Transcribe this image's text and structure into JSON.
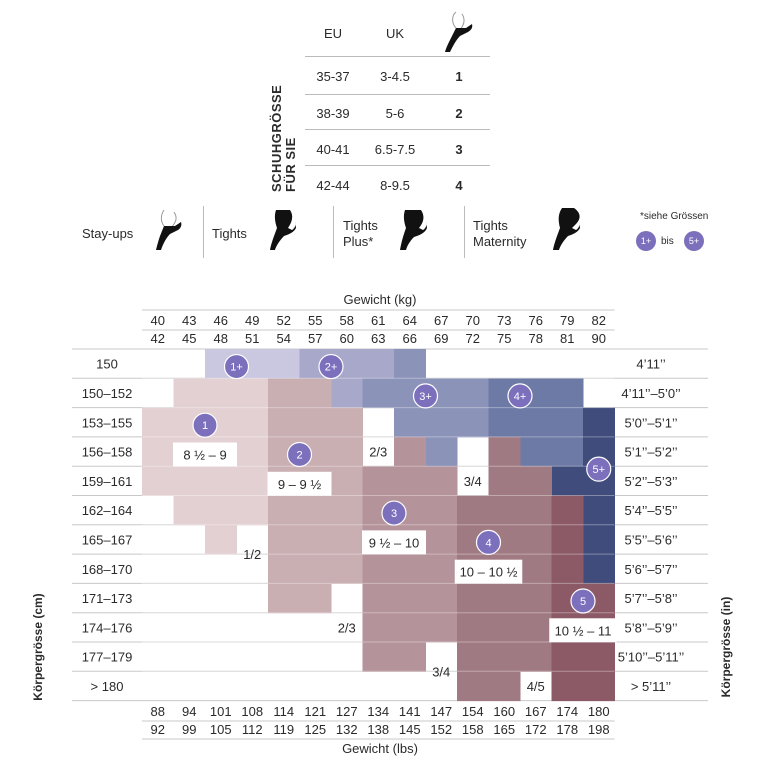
{
  "shoe_table": {
    "title_line1": "SCHUHGRÖSSE",
    "title_line2": "FÜR SIE",
    "headers": [
      "EU",
      "UK"
    ],
    "rows": [
      {
        "eu": "35-37",
        "uk": "3-4.5",
        "size": "1"
      },
      {
        "eu": "38-39",
        "uk": "5-6",
        "size": "2"
      },
      {
        "eu": "40-41",
        "uk": "6.5-7.5",
        "size": "3"
      },
      {
        "eu": "42-44",
        "uk": "8-9.5",
        "size": "4"
      }
    ]
  },
  "legend": {
    "items": [
      {
        "label": "Stay-ups",
        "icon": "stay-ups-leg-icon"
      },
      {
        "label": "Tights",
        "icon": "tights-leg-icon"
      },
      {
        "label": "Tights Plus*",
        "icon": "tights-plus-leg-icon"
      },
      {
        "label": "Tights Maternity",
        "icon": "tights-maternity-leg-icon"
      }
    ],
    "note": "*siehe Grössen",
    "badge_from": "1+",
    "badge_between": "bis",
    "badge_to": "5+"
  },
  "chart_data": {
    "type": "heatmap",
    "title_top": "Gewicht (kg)",
    "title_bottom": "Gewicht (lbs)",
    "ylabel_left": "Körpergrösse (cm)",
    "ylabel_right": "Körpergrösse (in)",
    "kg_row1": [
      "40",
      "43",
      "46",
      "49",
      "52",
      "55",
      "58",
      "61",
      "64",
      "67",
      "70",
      "73",
      "76",
      "79",
      "82"
    ],
    "kg_row2": [
      "42",
      "45",
      "48",
      "51",
      "54",
      "57",
      "60",
      "63",
      "66",
      "69",
      "72",
      "75",
      "78",
      "81",
      "90"
    ],
    "lbs_row1": [
      "88",
      "94",
      "101",
      "108",
      "114",
      "121",
      "127",
      "134",
      "141",
      "147",
      "154",
      "160",
      "167",
      "174",
      "180"
    ],
    "lbs_row2": [
      "92",
      "99",
      "105",
      "112",
      "119",
      "125",
      "132",
      "138",
      "145",
      "152",
      "158",
      "165",
      "172",
      "178",
      "198"
    ],
    "heights_cm": [
      "150",
      "150–152",
      "153–155",
      "156–158",
      "159–161",
      "162–164",
      "165–167",
      "168–170",
      "171–173",
      "174–176",
      "177–179",
      "> 180"
    ],
    "heights_in": [
      "4’11’’",
      "4’11’’–5’0’’",
      "5’0’’–5’1’’",
      "5’1’’–5’2’’",
      "5’2’’–5’3’’",
      "5’4’’–5’5’’",
      "5’5’’–5’6’’",
      "5’6’’–5’7’’",
      "5’7’’–5’8’’",
      "5’8’’–5’9’’",
      "5’10’’–5’11’’",
      "> 5’11’’"
    ],
    "size_colors": {
      "1": "#e3d0d3",
      "2": "#c9aeb2",
      "3": "#b4939a",
      "4": "#a07a82",
      "5": "#8c5a67",
      "1+": "#c9c8e0",
      "2+": "#a8a9ca",
      "3+": "#8b93b9",
      "4+": "#6d7aa6",
      "5+": "#3f4c7c"
    },
    "regions": [
      {
        "size": "1+",
        "rows": [
          [
            0,
            2,
            4
          ]
        ]
      },
      {
        "size": "2+",
        "rows": [
          [
            0,
            5,
            7
          ],
          [
            1,
            5,
            6
          ]
        ]
      },
      {
        "size": "3+",
        "rows": [
          [
            0,
            8,
            8
          ],
          [
            1,
            7,
            10
          ],
          [
            2,
            8,
            10
          ],
          [
            3,
            9,
            9
          ]
        ]
      },
      {
        "size": "4+",
        "rows": [
          [
            1,
            11,
            13
          ],
          [
            2,
            11,
            13
          ],
          [
            3,
            12,
            13
          ]
        ]
      },
      {
        "size": "5+",
        "rows": [
          [
            2,
            14,
            14
          ],
          [
            3,
            14,
            14
          ],
          [
            4,
            13,
            14
          ],
          [
            5,
            14,
            14
          ],
          [
            6,
            14,
            14
          ],
          [
            7,
            14,
            14
          ]
        ]
      },
      {
        "size": "1",
        "rows": [
          [
            1,
            1,
            3
          ],
          [
            2,
            0,
            3
          ],
          [
            3,
            0,
            3
          ],
          [
            4,
            0,
            3
          ],
          [
            5,
            1,
            3
          ],
          [
            6,
            2,
            2
          ]
        ]
      },
      {
        "size": "2",
        "rows": [
          [
            1,
            4,
            5
          ],
          [
            2,
            4,
            6
          ],
          [
            3,
            4,
            6
          ],
          [
            4,
            4,
            6
          ],
          [
            5,
            4,
            6
          ],
          [
            6,
            4,
            6
          ],
          [
            7,
            4,
            6
          ],
          [
            8,
            4,
            5
          ]
        ]
      },
      {
        "size": "3",
        "rows": [
          [
            3,
            8,
            8
          ],
          [
            4,
            7,
            9
          ],
          [
            5,
            7,
            9
          ],
          [
            6,
            7,
            9
          ],
          [
            7,
            7,
            9
          ],
          [
            8,
            7,
            9
          ],
          [
            9,
            7,
            9
          ],
          [
            10,
            7,
            8
          ]
        ]
      },
      {
        "size": "4",
        "rows": [
          [
            3,
            11,
            11
          ],
          [
            4,
            11,
            12
          ],
          [
            5,
            10,
            12
          ],
          [
            6,
            10,
            12
          ],
          [
            7,
            10,
            12
          ],
          [
            8,
            10,
            12
          ],
          [
            9,
            10,
            12
          ],
          [
            10,
            10,
            12
          ],
          [
            11,
            10,
            11
          ]
        ]
      },
      {
        "size": "5",
        "rows": [
          [
            5,
            13,
            13
          ],
          [
            6,
            13,
            13
          ],
          [
            7,
            13,
            13
          ],
          [
            8,
            13,
            14
          ],
          [
            9,
            13,
            14
          ],
          [
            10,
            13,
            14
          ],
          [
            11,
            13,
            14
          ]
        ]
      }
    ],
    "badges": [
      {
        "label": "1+",
        "col": 3.0,
        "row": 0.6
      },
      {
        "label": "2+",
        "col": 6.0,
        "row": 0.6
      },
      {
        "label": "3+",
        "col": 9.0,
        "row": 1.6
      },
      {
        "label": "4+",
        "col": 12.0,
        "row": 1.6
      },
      {
        "label": "5+",
        "col": 14.5,
        "row": 4.1
      },
      {
        "label": "1",
        "col": 2.0,
        "row": 2.6
      },
      {
        "label": "2",
        "col": 5.0,
        "row": 3.6
      },
      {
        "label": "3",
        "col": 8.0,
        "row": 5.6
      },
      {
        "label": "4",
        "col": 11.0,
        "row": 6.6
      },
      {
        "label": "5",
        "col": 14.0,
        "row": 8.6
      }
    ],
    "size_labels": [
      {
        "text": "8 ½ – 9",
        "col": 2.0,
        "row": 3.6
      },
      {
        "text": "9 – 9 ½",
        "col": 5.0,
        "row": 4.6
      },
      {
        "text": "9 ½ – 10",
        "col": 8.0,
        "row": 6.6
      },
      {
        "text": "10 – 10 ½",
        "col": 11.0,
        "row": 7.6
      },
      {
        "text": "10 ½ – 11",
        "col": 14.0,
        "row": 9.6
      }
    ],
    "gap_labels": [
      {
        "text": "1/2",
        "col": 3.5,
        "row": 7.0
      },
      {
        "text": "2/3",
        "col": 6.5,
        "row": 9.5
      },
      {
        "text": "2/3",
        "col": 7.5,
        "row": 3.5
      },
      {
        "text": "3/4",
        "col": 10.5,
        "row": 4.5
      },
      {
        "text": "3/4",
        "col": 9.5,
        "row": 11.0
      },
      {
        "text": "4/5",
        "col": 12.5,
        "row": 11.5
      }
    ]
  }
}
